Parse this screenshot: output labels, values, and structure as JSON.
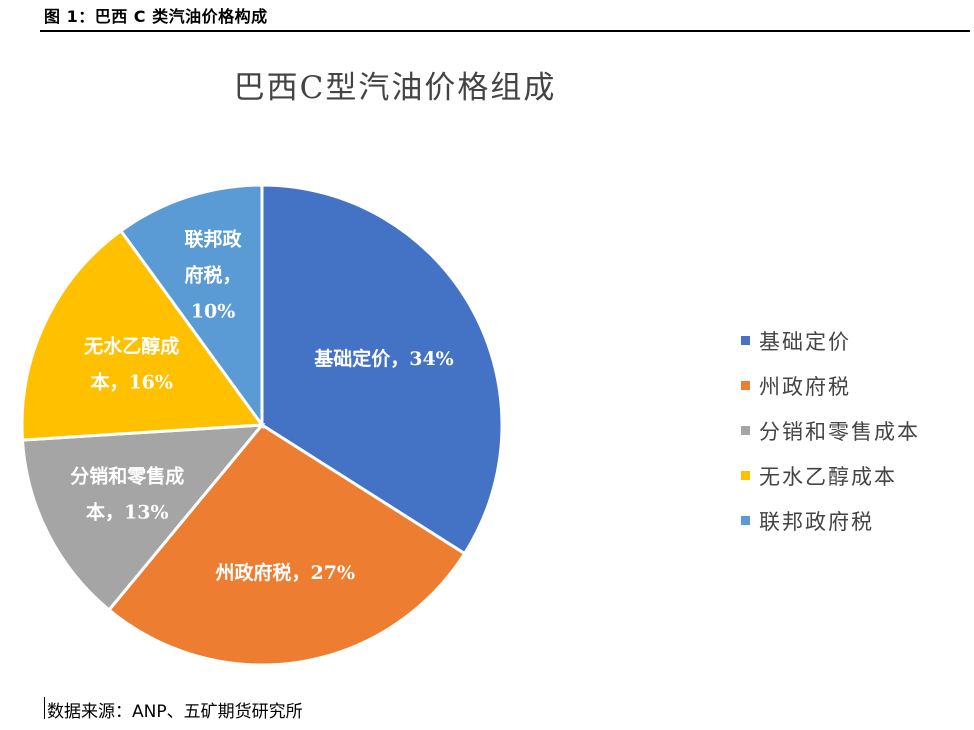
{
  "figure": {
    "header": "图 1：巴西 C 类汽油价格构成",
    "source": "数据来源：ANP、五矿期货研究所"
  },
  "chart_data": {
    "type": "pie",
    "title": "巴西C型汽油价格组成",
    "slices": [
      {
        "name": "基础定价",
        "value": 34,
        "label_lines": [
          "基础定价，34%"
        ],
        "color": "#4472C4"
      },
      {
        "name": "州政府税",
        "value": 27,
        "label_lines": [
          "州政府税，27%"
        ],
        "color": "#ED7D31"
      },
      {
        "name": "分销和零售成本",
        "value": 13,
        "label_lines": [
          "分销和零售成",
          "本，13%"
        ],
        "color": "#A5A5A5"
      },
      {
        "name": "无水乙醇成本",
        "value": 16,
        "label_lines": [
          "无水乙醇成",
          "本，16%"
        ],
        "color": "#FFC000"
      },
      {
        "name": "联邦政府税",
        "value": 10,
        "label_lines": [
          "联邦政",
          "府税，",
          "10%"
        ],
        "color": "#5B9BD5"
      }
    ],
    "legend": {
      "position": "right",
      "items": [
        "基础定价",
        "州政府税",
        "分销和零售成本",
        "无水乙醇成本",
        "联邦政府税"
      ]
    }
  }
}
